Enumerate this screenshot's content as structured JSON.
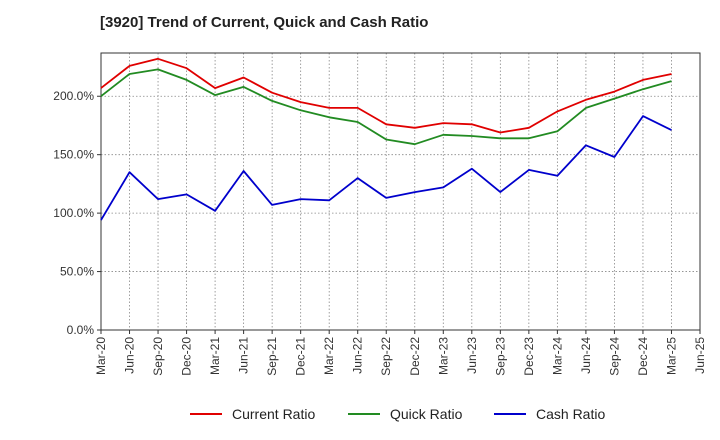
{
  "chart_data": {
    "type": "line",
    "title": "[3920]  Trend of Current, Quick and Cash Ratio",
    "xlabel": "",
    "ylabel": "",
    "ylim": [
      0,
      237
    ],
    "y_ticks": [
      0,
      50,
      100,
      150,
      200
    ],
    "y_tick_labels": [
      "0.0%",
      "50.0%",
      "100.0%",
      "150.0%",
      "200.0%"
    ],
    "x_tick_labels": [
      "Mar-20",
      "Jun-20",
      "Sep-20",
      "Dec-20",
      "Mar-21",
      "Jun-21",
      "Sep-21",
      "Dec-21",
      "Mar-22",
      "Jun-22",
      "Sep-22",
      "Dec-22",
      "Mar-23",
      "Jun-23",
      "Sep-23",
      "Dec-23",
      "Mar-24",
      "Jun-24",
      "Sep-24",
      "Dec-24",
      "Mar-25",
      "Jun-25"
    ],
    "categories": [
      "Mar-20",
      "Jun-20",
      "Sep-20",
      "Dec-20",
      "Mar-21",
      "Jun-21",
      "Sep-21",
      "Dec-21",
      "Mar-22",
      "Jun-22",
      "Sep-22",
      "Dec-22",
      "Mar-23",
      "Jun-23",
      "Sep-23",
      "Dec-23",
      "Mar-24",
      "Jun-24",
      "Sep-24",
      "Dec-24",
      "Mar-25"
    ],
    "series": [
      {
        "name": "Current Ratio",
        "color": "#e00000",
        "values": [
          207,
          226,
          232,
          224,
          207,
          216,
          203,
          195,
          190,
          190,
          176,
          173,
          177,
          176,
          169,
          173,
          187,
          197,
          204,
          214,
          219
        ]
      },
      {
        "name": "Quick Ratio",
        "color": "#228b22",
        "values": [
          200,
          219,
          223,
          214,
          201,
          208,
          196,
          188,
          182,
          178,
          163,
          159,
          167,
          166,
          164,
          164,
          170,
          190,
          198,
          206,
          213
        ]
      },
      {
        "name": "Cash Ratio",
        "color": "#0000cc",
        "values": [
          94,
          135,
          112,
          116,
          102,
          136,
          107,
          112,
          111,
          130,
          113,
          118,
          122,
          138,
          118,
          137,
          132,
          158,
          148,
          183,
          171
        ]
      }
    ],
    "legend_position": "bottom",
    "grid": true
  }
}
